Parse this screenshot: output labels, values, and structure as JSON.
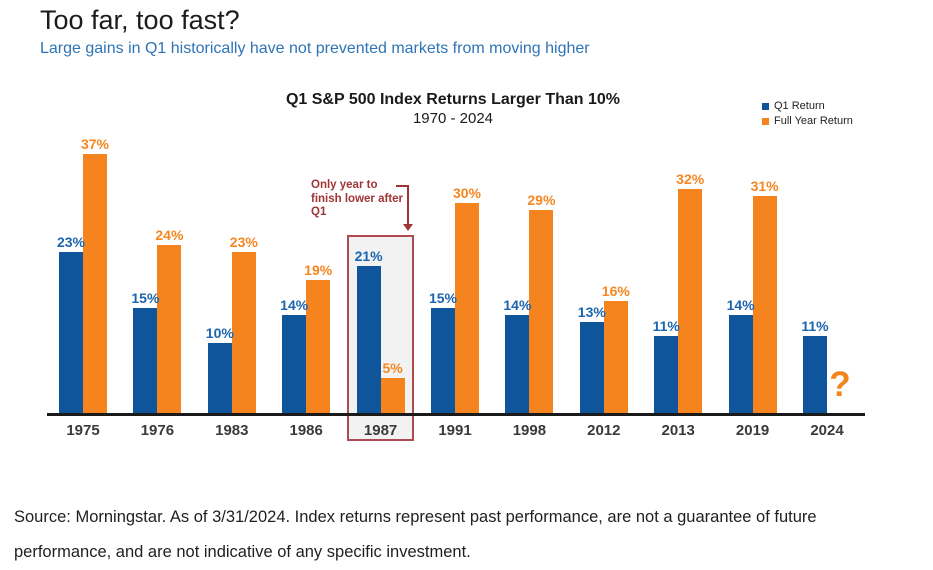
{
  "header": {
    "title": "Too far, too fast?",
    "subtitle": "Large gains in Q1 historically have not prevented markets from moving higher"
  },
  "chart": {
    "title": "Q1 S&P 500 Index Returns Larger Than 10%",
    "subtitle": "1970 - 2024"
  },
  "chart_data": {
    "type": "bar",
    "categories": [
      "1975",
      "1976",
      "1983",
      "1986",
      "1987",
      "1991",
      "1998",
      "2012",
      "2013",
      "2019",
      "2024"
    ],
    "series": [
      {
        "name": "Q1 Return",
        "color": "#0E559C",
        "label_color": "#1B65AF",
        "values": [
          23,
          15,
          10,
          14,
          21,
          15,
          14,
          13,
          11,
          14,
          11
        ]
      },
      {
        "name": "Full Year Return",
        "color": "#F5841F",
        "label_color": "#F6861F",
        "values": [
          37,
          24,
          23,
          19,
          5,
          30,
          29,
          16,
          32,
          31,
          null
        ]
      }
    ],
    "value_suffix": "%",
    "highlighted_category": "1987",
    "annotation": "Only year to finish lower after Q1",
    "unknown_value_label": "?",
    "ylim": [
      0,
      40
    ],
    "grid": false,
    "legend_position": "top-right"
  },
  "source": {
    "line1": "Source: Morningstar. As of 3/31/2024. Index returns represent past performance, are not a guarantee of future",
    "line2": "performance, and are not indicative of any specific investment."
  }
}
